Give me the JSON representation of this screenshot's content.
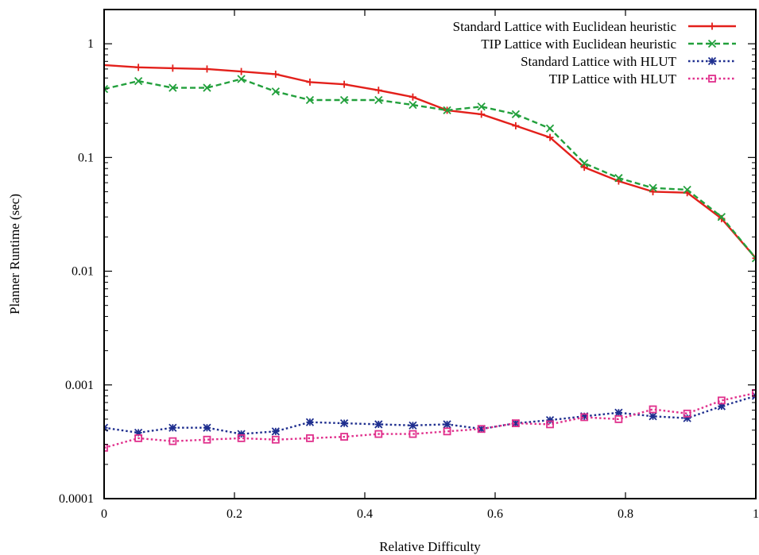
{
  "chart_data": {
    "type": "line",
    "title": "",
    "xlabel": "Relative Difficulty",
    "ylabel": "Planner Runtime (sec)",
    "xlim": [
      0,
      1
    ],
    "ylim": [
      0.0001,
      2
    ],
    "yscale": "log",
    "grid": false,
    "legend_position": "top-right",
    "x_ticks": [
      0,
      0.2,
      0.4,
      0.6,
      0.8,
      1
    ],
    "x_tick_labels": [
      "0",
      "0.2",
      "0.4",
      "0.6",
      "0.8",
      "1"
    ],
    "y_ticks": [
      0.0001,
      0.001,
      0.01,
      0.1,
      1
    ],
    "y_tick_labels": [
      "0.0001",
      "0.001",
      "0.01",
      "0.1",
      "1"
    ],
    "x": [
      0,
      0.0526,
      0.1053,
      0.1579,
      0.2105,
      0.2632,
      0.3158,
      0.3684,
      0.4211,
      0.4737,
      0.5263,
      0.5789,
      0.6316,
      0.6842,
      0.7368,
      0.7895,
      0.8421,
      0.8947,
      0.9474,
      1.0
    ],
    "series": [
      {
        "name": "Standard Lattice with Euclidean heuristic",
        "color": "#e3201b",
        "dash": "solid",
        "marker": "plus",
        "values": [
          0.65,
          0.62,
          0.61,
          0.6,
          0.57,
          0.54,
          0.46,
          0.44,
          0.39,
          0.34,
          0.26,
          0.24,
          0.19,
          0.15,
          0.082,
          0.062,
          0.05,
          0.049,
          0.029,
          0.013
        ]
      },
      {
        "name": "TIP Lattice with Euclidean heuristic",
        "color": "#22a03c",
        "dash": "dashed",
        "marker": "x",
        "values": [
          0.4,
          0.47,
          0.41,
          0.41,
          0.49,
          0.38,
          0.32,
          0.32,
          0.32,
          0.29,
          0.26,
          0.28,
          0.24,
          0.18,
          0.089,
          0.066,
          0.054,
          0.052,
          0.03,
          0.013
        ]
      },
      {
        "name": "Standard Lattice with HLUT",
        "color": "#1f2f8f",
        "dash": "dotted",
        "marker": "star",
        "values": [
          0.00042,
          0.00038,
          0.00042,
          0.00042,
          0.00037,
          0.00039,
          0.00047,
          0.00046,
          0.00045,
          0.00044,
          0.00045,
          0.00041,
          0.00046,
          0.00049,
          0.00053,
          0.00057,
          0.00053,
          0.00051,
          0.00065,
          0.0008
        ]
      },
      {
        "name": "TIP Lattice with HLUT",
        "color": "#e0308c",
        "dash": "dotted",
        "marker": "square",
        "values": [
          0.00028,
          0.00034,
          0.00032,
          0.00033,
          0.00034,
          0.00033,
          0.00034,
          0.00035,
          0.00037,
          0.00037,
          0.00039,
          0.00041,
          0.00046,
          0.00045,
          0.00052,
          0.0005,
          0.00061,
          0.00056,
          0.00073,
          0.00085
        ]
      }
    ]
  }
}
